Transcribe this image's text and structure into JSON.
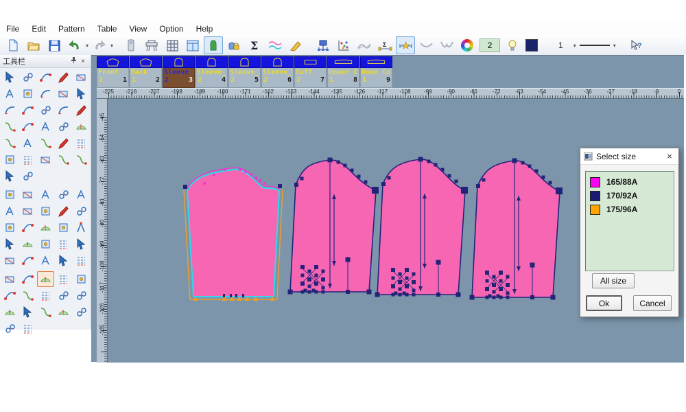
{
  "menu": {
    "items": [
      "File",
      "Edit",
      "Pattern",
      "Table",
      "View",
      "Option",
      "Help"
    ]
  },
  "toolbar": {
    "items": [
      {
        "name": "new-document-icon"
      },
      {
        "name": "open-file-icon"
      },
      {
        "name": "save-icon"
      },
      {
        "name": "undo-icon",
        "dropdown": true
      },
      {
        "name": "redo-icon",
        "dropdown": true,
        "gap_after": true
      },
      {
        "name": "measure-device-icon"
      },
      {
        "name": "plotter-icon"
      },
      {
        "name": "size-table-icon"
      },
      {
        "name": "pattern-window-icon"
      },
      {
        "name": "pattern-piece-icon",
        "selected": true
      },
      {
        "name": "lock-tool-icon"
      },
      {
        "name": "sum-measure-icon"
      },
      {
        "name": "curve-compare-icon"
      },
      {
        "name": "brush-clean-icon",
        "gap_after": true
      },
      {
        "name": "plot-preview-icon"
      },
      {
        "name": "point-chart-icon"
      },
      {
        "name": "curve-chart-icon"
      },
      {
        "name": "segment-sum-icon"
      },
      {
        "name": "segment-star-icon",
        "selected": true
      },
      {
        "name": "curve-shallow-icon"
      },
      {
        "name": "curve-deep-icon"
      },
      {
        "name": "color-wheel-icon"
      }
    ],
    "size_count": "2",
    "bulb_icon": "bulb-icon",
    "color_swatch_icon": "line-color-swatch",
    "line_width_value": "1",
    "line_style": "solid-line-preview",
    "help_cursor": "help-cursor-icon"
  },
  "palette": {
    "title": "工具栏",
    "pin_icon": "pin-icon",
    "close_icon": "close-icon",
    "selected_tool": "notch-mark-tool",
    "sections": [
      {
        "tools": [
          "select-tool",
          "bezier-edit-tool",
          "curve-point-tool",
          "pencil-tool",
          "eraser-tool",
          "smart-curve-tool",
          "line-connect-tool",
          "bow-tie-tool",
          "point-move-tool",
          "corner-square-tool",
          "arc-tool",
          "angle-arc-tool",
          "scissors-tool",
          "seal-tool",
          "spectacles-tool",
          "snip-tool",
          "axis-cross-tool",
          "compass-tool",
          "comet-pen-tool",
          "protractor-tool",
          "dot-grid-tool",
          "set-square-tool",
          "funnel-tool",
          "clamp-tool",
          "dash-line-tool",
          "mound-tool",
          "pleat-tool",
          "skirt-panel-tool",
          "spiral-tool",
          "t-square-tool",
          "stitch-block-tool",
          "chain-link-tool"
        ]
      },
      {
        "tools": [
          "pattern-outline-tool",
          "pocket-tool",
          "pant-block-tool",
          "fabric-swatch-tool",
          "pattern-point-tool",
          "pen-box-tool",
          "seam-red-tool",
          "button-tool",
          "width-measure-tool",
          "seam-green-tool",
          "fold-fabric-tool",
          "fabric-circle-tool",
          "boot-tool",
          "mitten-tool",
          "pant-dot-tool",
          "shirt-overlay-tool",
          "mannequin-tool",
          "glove-tool",
          "drape-tool",
          "wave-fabric-tool",
          "corner-node-tool",
          "path-flag-tool",
          "sewing-machine-tool",
          "s-curve-tool",
          "fabric-stack-tool"
        ]
      },
      {
        "tools": [
          "node-frame-tool",
          "bracket-swap-tool",
          "notch-mark-tool",
          "piece-overlap-tool",
          "curve-adjust-tool",
          "seam-corner-tool",
          "hem-curve-tool",
          "point-chain-tool",
          "pocket-copy-tool",
          "radial-arc-tool",
          "nested-rect-tool",
          "corner-red-tool",
          "angle-line-tool",
          "slash-cut-tool",
          "angle-measure-tool",
          "height-measure-tool",
          "symmetry-tool"
        ]
      }
    ]
  },
  "tabs": [
    {
      "name": "Front",
      "left_num": "2",
      "right_num": "1",
      "shape": "shirt",
      "selected": false
    },
    {
      "name": "Back",
      "left_num": "1",
      "right_num": "2",
      "shape": "shirt",
      "selected": false
    },
    {
      "name": "Sleeve",
      "left_num": "2",
      "right_num": "3",
      "shape": "sleeve",
      "selected": true
    },
    {
      "name": "Sleeve_",
      "left_num": "2",
      "right_num": "4",
      "shape": "sleeve",
      "selected": false
    },
    {
      "name": "Sleeve_",
      "left_num": "2",
      "right_num": "5",
      "shape": "sleeve",
      "selected": false
    },
    {
      "name": "Sleeve_",
      "left_num": "2",
      "right_num": "6",
      "shape": "sleeve",
      "selected": false
    },
    {
      "name": "Cuff",
      "left_num": "2",
      "right_num": "7",
      "shape": "cuff",
      "selected": false
    },
    {
      "name": "Upper C",
      "left_num": "1",
      "right_num": "8",
      "shape": "strip",
      "selected": false
    },
    {
      "name": "Down Co",
      "left_num": "1",
      "right_num": "9",
      "shape": "strip",
      "selected": false
    }
  ],
  "rulers": {
    "h_labels": [
      -225,
      -216,
      -207,
      -198,
      -189,
      -180,
      -171,
      -162,
      -153,
      -144,
      -135,
      -126,
      -117,
      -108,
      -99,
      -90,
      -81,
      -72,
      -63,
      -54,
      -45,
      -36,
      -27,
      -18,
      -9,
      0
    ],
    "v_labels": [
      -45,
      -54,
      -63,
      -72,
      -81,
      -90,
      -99,
      -108,
      -117,
      -126,
      -135
    ]
  },
  "canvas": {
    "pieces": [
      {
        "name": "sleeve-piece-selected-all-sizes"
      },
      {
        "name": "sleeve-piece-2"
      },
      {
        "name": "sleeve-piece-3"
      },
      {
        "name": "sleeve-piece-4"
      }
    ]
  },
  "colors": {
    "canvas_bg": "#7d95ab",
    "piece_fill": "#f766b3",
    "piece_outline": "#232378",
    "selected_outline": "#35d6ea",
    "grade_orange": "#f2a024",
    "grade_magenta": "#ff2bd6",
    "tab_thumb_blue": "#1414dc",
    "tab_shape_yellow": "#e8d83c",
    "ruler_bg": "#b9c6d1"
  },
  "dialog": {
    "title": "Select size",
    "sizes": [
      {
        "label": "165/88A",
        "color": "#ff00f0"
      },
      {
        "label": "170/92A",
        "color": "#1c1c74"
      },
      {
        "label": "175/96A",
        "color": "#ffa400"
      }
    ],
    "all_size_label": "All size",
    "ok_label": "Ok",
    "cancel_label": "Cancel"
  }
}
